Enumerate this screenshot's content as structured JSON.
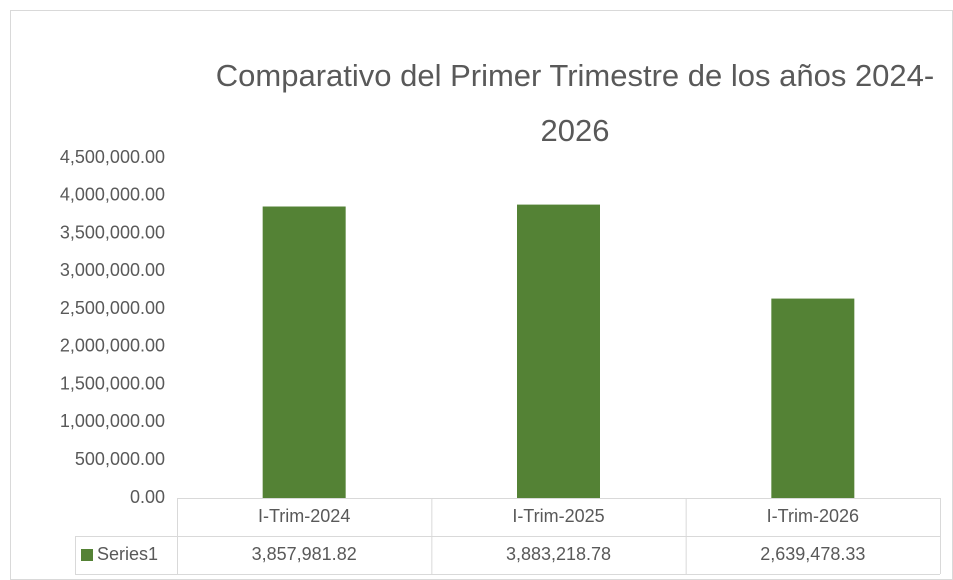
{
  "chart_data": {
    "type": "bar",
    "title": "Comparativo del Primer Trimestre de los años 2024-2026",
    "categories": [
      "I-Trim-2024",
      "I-Trim-2025",
      "I-Trim-2026"
    ],
    "series": [
      {
        "name": "Series1",
        "color": "#548235",
        "values": [
          3857981.82,
          3883218.78,
          2639478.33
        ],
        "value_labels": [
          "3,857,981.82",
          "3,883,218.78",
          "2,639,478.33"
        ]
      }
    ],
    "ylim": [
      0,
      4500000
    ],
    "yticks": [
      {
        "value": 0,
        "label": "0.00"
      },
      {
        "value": 500000,
        "label": "500,000.00"
      },
      {
        "value": 1000000,
        "label": "1,000,000.00"
      },
      {
        "value": 1500000,
        "label": "1,500,000.00"
      },
      {
        "value": 2000000,
        "label": "2,000,000.00"
      },
      {
        "value": 2500000,
        "label": "2,500,000.00"
      },
      {
        "value": 3000000,
        "label": "3,000,000.00"
      },
      {
        "value": 3500000,
        "label": "3,500,000.00"
      },
      {
        "value": 4000000,
        "label": "4,000,000.00"
      },
      {
        "value": 4500000,
        "label": "4,500,000.00"
      }
    ],
    "grid": false,
    "legend": "table"
  }
}
